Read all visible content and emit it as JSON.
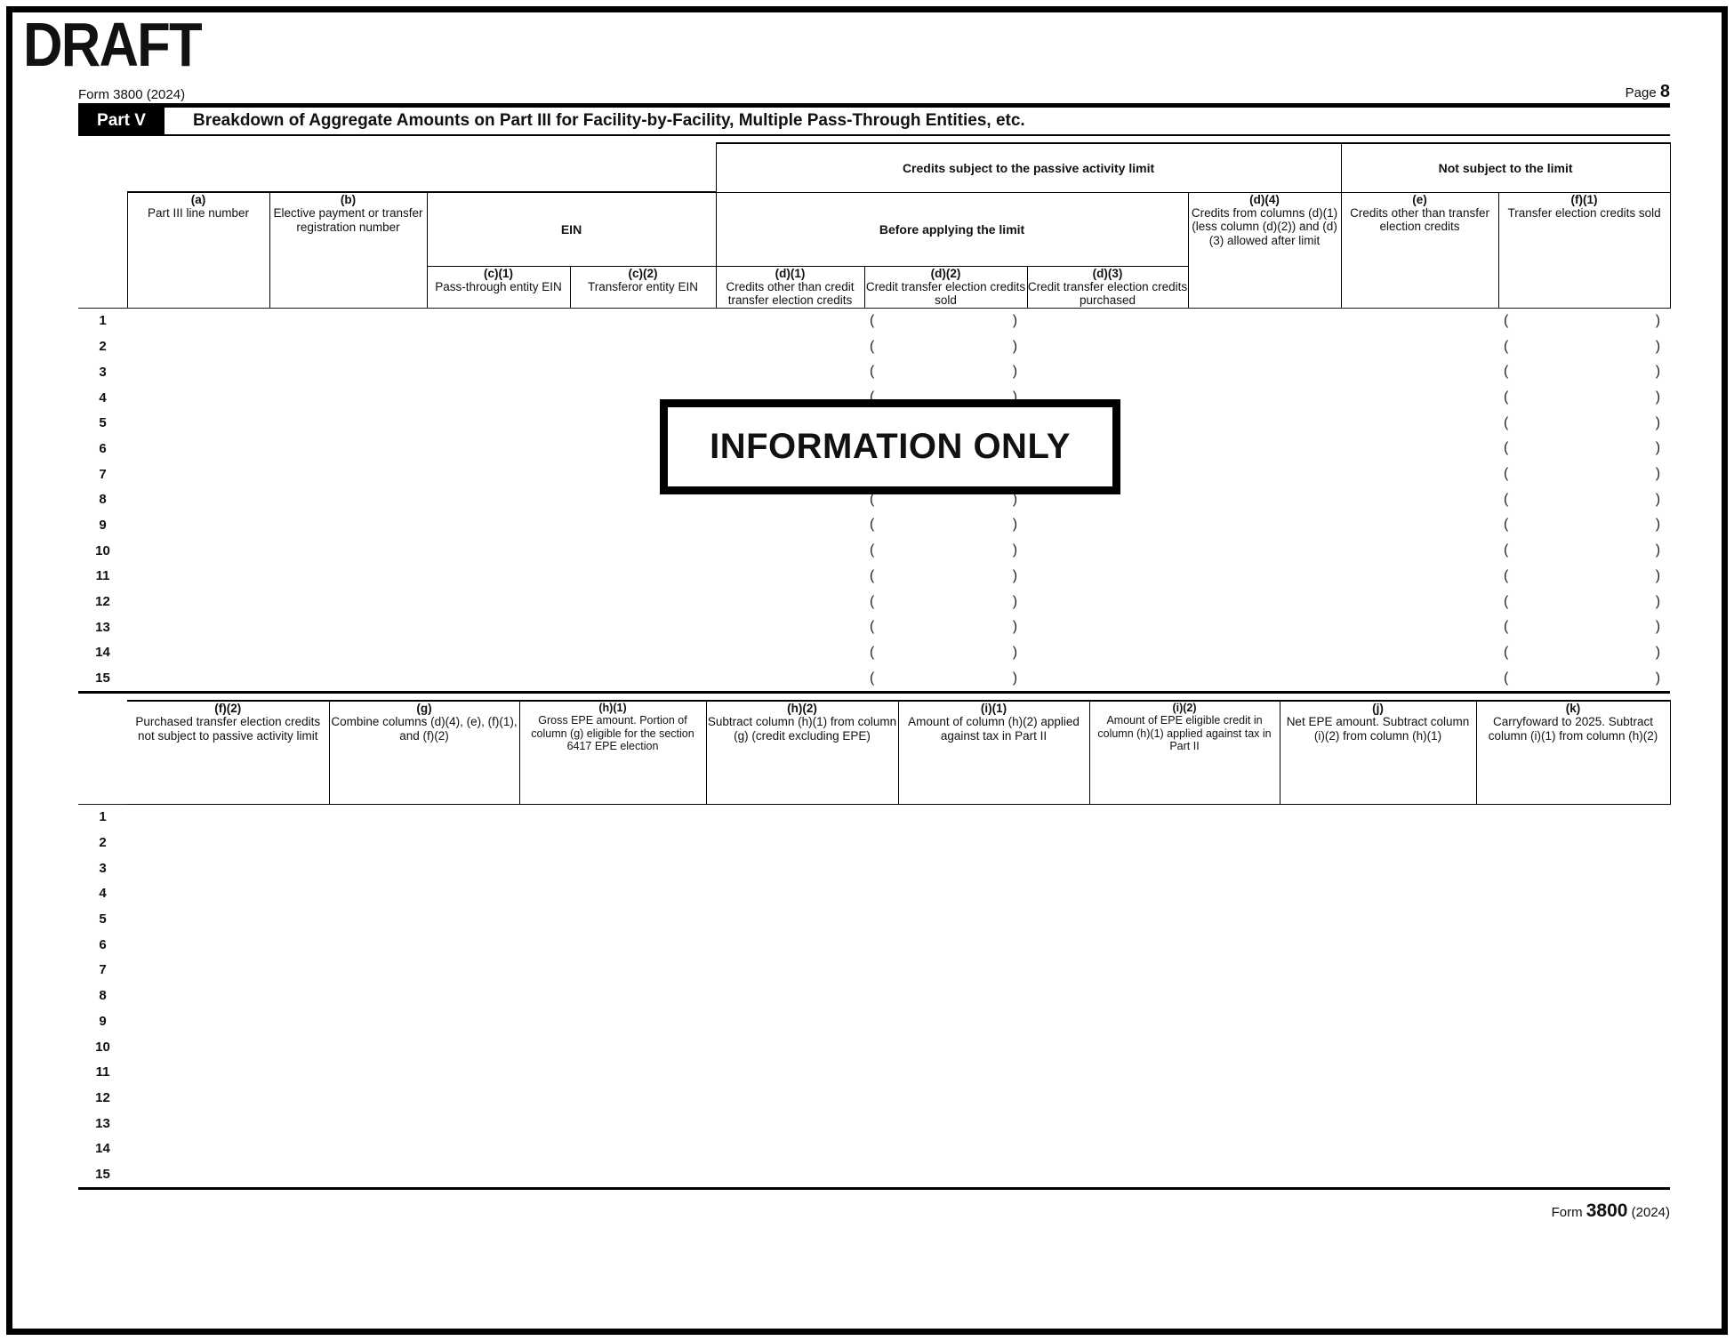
{
  "page": {
    "draft": "DRAFT",
    "form_header": "Form 3800 (2024)",
    "page_word": "Page",
    "page_number": "8",
    "stamp": "INFORMATION ONLY",
    "footer": {
      "form_word": "Form",
      "number": "3800",
      "year": "(2024)"
    }
  },
  "part_v": {
    "label": "Part V",
    "title": "Breakdown of Aggregate Amounts on Part III for Facility-by-Facility, Multiple Pass-Through Entities, etc."
  },
  "chars": {
    "open_paren": "(",
    "close_paren": ")"
  },
  "table1": {
    "groups": {
      "passive_limit": "Credits subject to the passive activity limit",
      "not_subject": "Not subject to the limit",
      "ein": "EIN",
      "before_limit": "Before applying the limit"
    },
    "columns": {
      "a": {
        "tag": "(a)",
        "desc": "Part III line number"
      },
      "b": {
        "tag": "(b)",
        "desc": "Elective payment or transfer registration number"
      },
      "c1": {
        "tag": "(c)(1)",
        "desc": "Pass-through entity EIN"
      },
      "c2": {
        "tag": "(c)(2)",
        "desc": "Transferor entity EIN"
      },
      "d1": {
        "tag": "(d)(1)",
        "desc": "Credits other than credit transfer election credits"
      },
      "d2": {
        "tag": "(d)(2)",
        "desc": "Credit transfer election credits sold"
      },
      "d3": {
        "tag": "(d)(3)",
        "desc": "Credit transfer election credits purchased"
      },
      "d4": {
        "tag": "(d)(4)",
        "desc": "Credits from columns (d)(1) (less column (d)(2)) and (d)(3) allowed after limit"
      },
      "e": {
        "tag": "(e)",
        "desc": "Credits other than transfer election credits"
      },
      "f1": {
        "tag": "(f)(1)",
        "desc": "Transfer election credits sold"
      }
    },
    "row_numbers": [
      "1",
      "2",
      "3",
      "4",
      "5",
      "6",
      "7",
      "8",
      "9",
      "10",
      "11",
      "12",
      "13",
      "14",
      "15"
    ]
  },
  "table2": {
    "columns": {
      "f2": {
        "tag": "(f)(2)",
        "desc": "Purchased transfer election credits not subject to passive activity limit"
      },
      "g": {
        "tag": "(g)",
        "desc": "Combine columns (d)(4), (e), (f)(1), and (f)(2)"
      },
      "h1": {
        "tag": "(h)(1)",
        "desc": "Gross EPE amount. Portion of column (g) eligible for the section 6417 EPE election"
      },
      "h2": {
        "tag": "(h)(2)",
        "desc": "Subtract column (h)(1) from column (g) (credit excluding EPE)"
      },
      "i1": {
        "tag": "(i)(1)",
        "desc": "Amount of column (h)(2) applied against tax in Part II"
      },
      "i2": {
        "tag": "(i)(2)",
        "desc": "Amount of EPE eligible credit in column (h)(1) applied against tax in Part II"
      },
      "j": {
        "tag": "(j)",
        "desc": "Net EPE amount. Subtract column (i)(2) from column (h)(1)"
      },
      "k": {
        "tag": "(k)",
        "desc": "Carryfoward to 2025. Subtract column (i)(1) from column (h)(2)"
      }
    },
    "row_numbers": [
      "1",
      "2",
      "3",
      "4",
      "5",
      "6",
      "7",
      "8",
      "9",
      "10",
      "11",
      "12",
      "13",
      "14",
      "15"
    ]
  }
}
